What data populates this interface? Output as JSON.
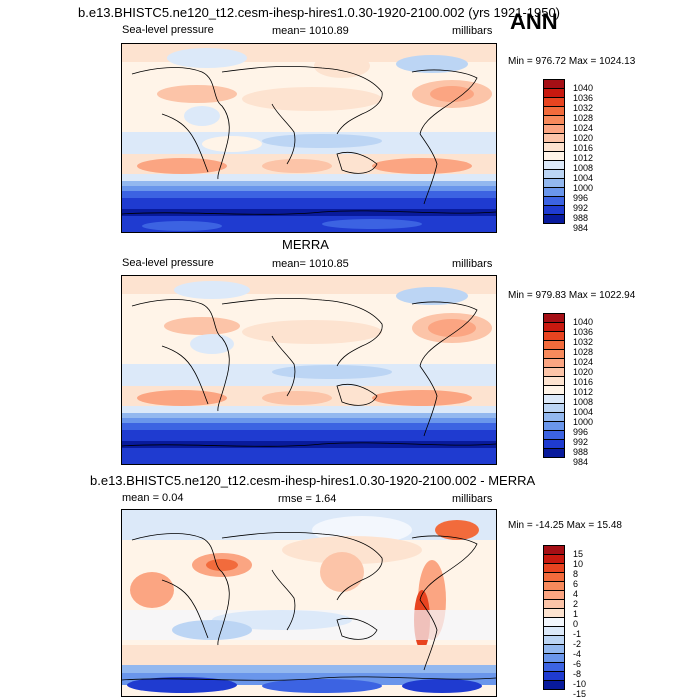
{
  "header": {
    "title": "b.e13.BHISTC5.ne120_t12.cesm-ihesp-hires1.0.30-1920-2100.002 (yrs 1921-1950)",
    "season": "ANN"
  },
  "panels": [
    {
      "id": "model",
      "subtitle": "",
      "left_label": "Sea-level pressure",
      "center_label": "mean= 1010.89",
      "right_label": "millibars",
      "minmax": "Min = 976.72 Max = 1024.13",
      "colorbar": {
        "labels": [
          "1040",
          "1036",
          "1032",
          "1028",
          "1024",
          "1020",
          "1016",
          "1012",
          "1008",
          "1004",
          "1000",
          "996",
          "992",
          "988",
          "984"
        ],
        "colors": [
          "#a50f15",
          "#c8190f",
          "#e84420",
          "#f26b3c",
          "#f78a5c",
          "#fba582",
          "#fcc4a8",
          "#fde3d0",
          "#fff4e8",
          "#dce9f9",
          "#bcd5f4",
          "#93b8ef",
          "#6a96eb",
          "#3c63e2",
          "#1f3bd0",
          "#081a9c"
        ]
      }
    },
    {
      "id": "obs",
      "subtitle": "MERRA",
      "left_label": "Sea-level pressure",
      "center_label": "mean= 1010.85",
      "right_label": "millibars",
      "minmax": "Min = 979.83 Max = 1022.94",
      "colorbar": {
        "labels": [
          "1040",
          "1036",
          "1032",
          "1028",
          "1024",
          "1020",
          "1016",
          "1012",
          "1008",
          "1004",
          "1000",
          "996",
          "992",
          "988",
          "984"
        ],
        "colors": [
          "#a50f15",
          "#c8190f",
          "#e84420",
          "#f26b3c",
          "#f78a5c",
          "#fba582",
          "#fcc4a8",
          "#fde3d0",
          "#fff4e8",
          "#dce9f9",
          "#bcd5f4",
          "#93b8ef",
          "#6a96eb",
          "#3c63e2",
          "#1f3bd0",
          "#081a9c"
        ]
      }
    },
    {
      "id": "diff",
      "subtitle": "b.e13.BHISTC5.ne120_t12.cesm-ihesp-hires1.0.30-1920-2100.002 - MERRA",
      "left_label": "mean =  0.04",
      "center_label": "rmse =  1.64",
      "right_label": "millibars",
      "minmax": "Min = -14.25 Max =  15.48",
      "colorbar": {
        "labels": [
          "15",
          "10",
          "8",
          "6",
          "4",
          "2",
          "1",
          "0",
          "-1",
          "-2",
          "-4",
          "-6",
          "-8",
          "-10",
          "-15"
        ],
        "colors": [
          "#a50f15",
          "#c8190f",
          "#e84420",
          "#f26b3c",
          "#f78a5c",
          "#fba582",
          "#fcc4a8",
          "#fde3d0",
          "#f3f7fd",
          "#dce9f9",
          "#bcd5f4",
          "#93b8ef",
          "#6a96eb",
          "#3c63e2",
          "#1f3bd0",
          "#081a9c"
        ]
      }
    }
  ]
}
